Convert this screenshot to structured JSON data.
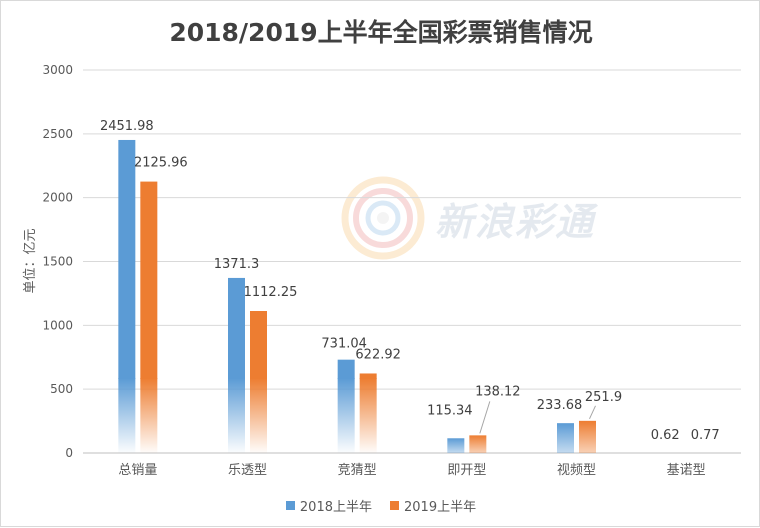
{
  "chart_data": {
    "type": "bar",
    "title": "2018/2019上半年全国彩票销售情况",
    "ylabel": "单位：亿元",
    "xlabel": "",
    "ylim": [
      0,
      3000
    ],
    "yticks": [
      0,
      500,
      1000,
      1500,
      2000,
      2500,
      3000
    ],
    "grid": true,
    "legend_position": "bottom",
    "categories": [
      "总销量",
      "乐透型",
      "竞猜型",
      "即开型",
      "视频型",
      "基诺型"
    ],
    "series": [
      {
        "name": "2018上半年",
        "color": "#5b9bd5",
        "values": [
          2451.98,
          1371.3,
          731.04,
          115.34,
          233.68,
          0.62
        ],
        "labels": [
          "2451.98",
          "1371.3",
          "731.04",
          "115.34",
          "233.68",
          "0.62"
        ]
      },
      {
        "name": "2019上半年",
        "color": "#ed7d31",
        "values": [
          2125.96,
          1112.25,
          622.92,
          138.12,
          251.9,
          0.77
        ],
        "labels": [
          "2125.96",
          "1112.25",
          "622.92",
          "138.12",
          "251.9",
          "0.77"
        ]
      }
    ]
  },
  "watermark": {
    "text": "新浪彩通"
  }
}
